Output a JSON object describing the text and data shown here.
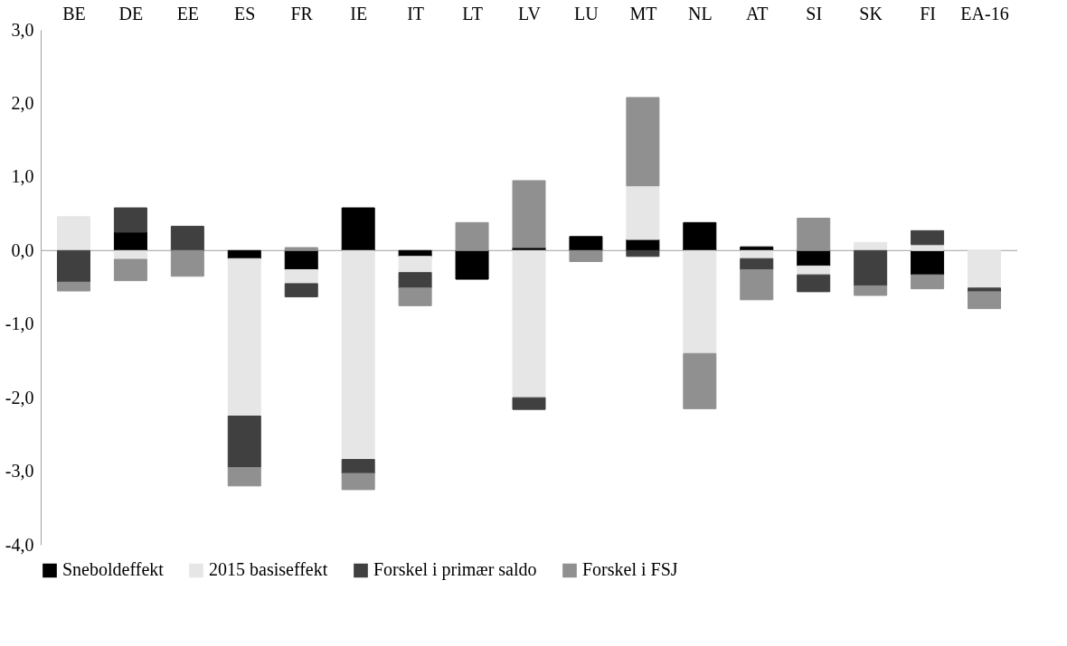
{
  "chart_data": {
    "type": "bar",
    "stacked": true,
    "categories": [
      "BE",
      "DE",
      "EE",
      "ES",
      "FR",
      "IE",
      "IT",
      "LT",
      "LV",
      "LU",
      "MT",
      "NL",
      "AT",
      "SI",
      "SK",
      "FI",
      "EA-16"
    ],
    "series": [
      {
        "name": "Sneboldeffekt",
        "color": "#000000",
        "values": [
          null,
          0.25,
          null,
          -0.11,
          -0.26,
          0.58,
          -0.08,
          -0.39,
          0.04,
          0.19,
          0.15,
          0.38,
          0.05,
          -0.21,
          null,
          -0.33,
          null
        ]
      },
      {
        "name": "2015 basiseffekt",
        "color": "#e6e6e6",
        "values": [
          0.46,
          -0.12,
          null,
          -2.14,
          -0.19,
          -2.84,
          -0.22,
          null,
          -2.0,
          null,
          0.73,
          -1.4,
          -0.11,
          -0.12,
          0.11,
          0.08,
          -0.51
        ]
      },
      {
        "name": "Forskel i primær saldo",
        "color": "#404040",
        "values": [
          -0.43,
          0.33,
          0.33,
          -0.7,
          -0.18,
          -0.19,
          -0.21,
          null,
          -0.16,
          null,
          -0.08,
          null,
          -0.15,
          -0.23,
          -0.48,
          0.19,
          -0.05
        ]
      },
      {
        "name": "Forskel i FSJ",
        "color": "#909090",
        "values": [
          -0.12,
          -0.29,
          -0.35,
          -0.25,
          0.04,
          -0.22,
          -0.24,
          0.38,
          0.91,
          -0.15,
          1.2,
          -0.75,
          -0.41,
          0.44,
          -0.13,
          -0.19,
          -0.23
        ]
      }
    ],
    "ylim": [
      -4.0,
      3.0
    ],
    "yticks": [
      {
        "value": -4,
        "label": "-4,0"
      },
      {
        "value": -3,
        "label": "-3,0"
      },
      {
        "value": -2,
        "label": "-2,0"
      },
      {
        "value": -1,
        "label": "-1,0"
      },
      {
        "value": 0,
        "label": "0,0"
      },
      {
        "value": 1,
        "label": "1,0"
      },
      {
        "value": 2,
        "label": "2,0"
      },
      {
        "value": 3,
        "label": "3,0"
      }
    ],
    "ref_lines": [
      {
        "axis": "y",
        "value": 0,
        "color": "#a0a0a0"
      }
    ],
    "legend": "bottom"
  }
}
